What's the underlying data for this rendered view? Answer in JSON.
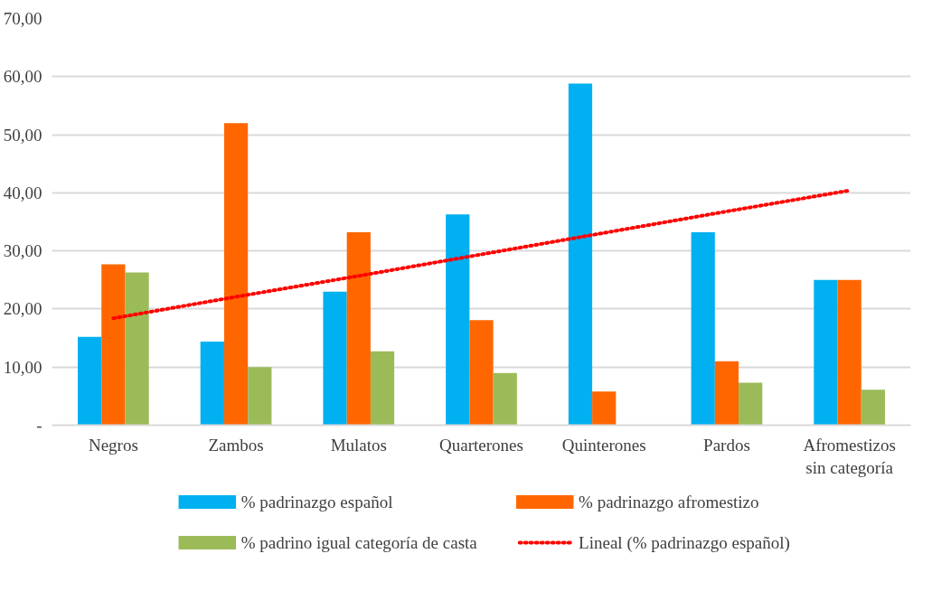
{
  "chart_data": {
    "type": "bar",
    "categories": [
      "Negros",
      "Zambos",
      "Mulatos",
      "Quarterones",
      "Quinterones",
      "Pardos",
      "Afromestizos sin categoría"
    ],
    "series": [
      {
        "name": "% padrinazgo español",
        "color": "#00b0f0",
        "values": [
          15.2,
          14.4,
          23.0,
          36.3,
          58.8,
          33.2,
          25.0
        ]
      },
      {
        "name": "% padrinazgo afromestizo",
        "color": "#ff6600",
        "values": [
          27.7,
          52.0,
          33.2,
          18.1,
          5.8,
          11.0,
          25.0
        ]
      },
      {
        "name": "% padrino igual categoría de casta",
        "color": "#9bbb59",
        "values": [
          26.3,
          10.0,
          12.7,
          9.0,
          null,
          7.3,
          6.1
        ]
      },
      {
        "name": "Lineal (% padrinazgo español)",
        "color": "#ff0000",
        "type": "line",
        "line_style": "dotted",
        "marker": "none",
        "values": [
          18.4,
          22.1,
          25.7,
          29.4,
          33.1,
          36.8,
          40.4
        ]
      }
    ],
    "ylim": [
      0,
      70
    ],
    "yticks": [
      {
        "value": 0,
        "label": "-"
      },
      {
        "value": 10,
        "label": "10,00"
      },
      {
        "value": 20,
        "label": "20,00"
      },
      {
        "value": 30,
        "label": "30,00"
      },
      {
        "value": 40,
        "label": "40,00"
      },
      {
        "value": 50,
        "label": "50,00"
      },
      {
        "value": 60,
        "label": "60,00"
      },
      {
        "value": 70,
        "label": "70,00"
      }
    ],
    "grid": "y",
    "legend": "bottom"
  }
}
